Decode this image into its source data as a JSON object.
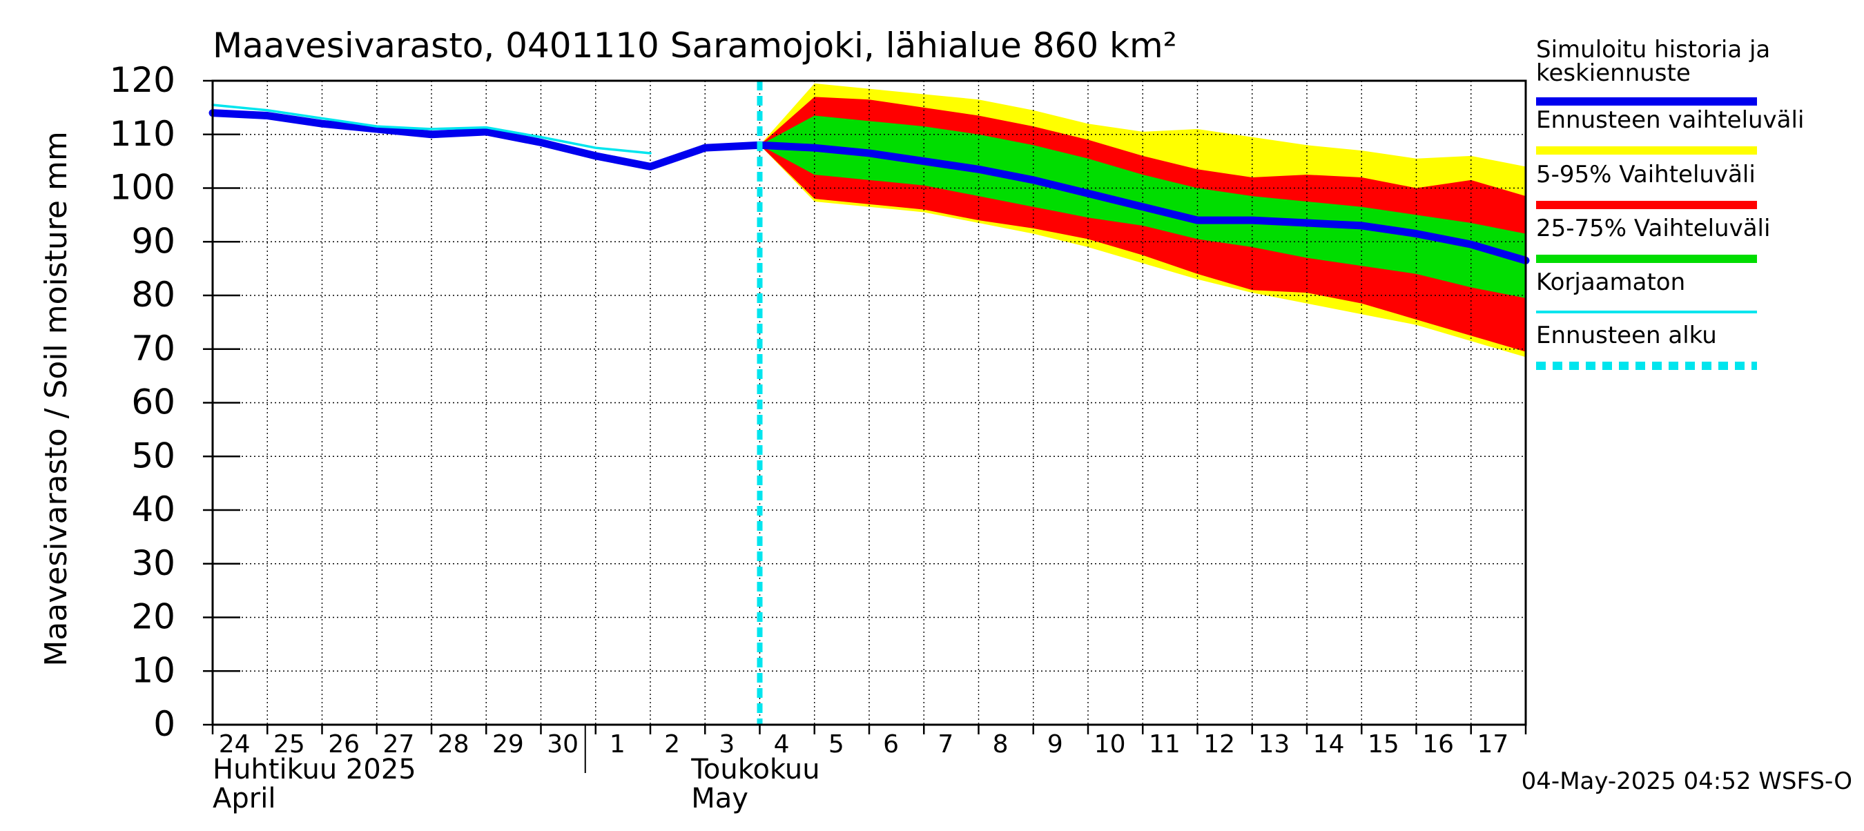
{
  "chart_data": {
    "type": "area",
    "title": "Maavesivarasto, 0401110 Saramojoki, lähialue 860 km²",
    "ylabel": "Maavesivarasto / Soil moisture   mm",
    "ylim": [
      0,
      120
    ],
    "yticks": [
      0,
      10,
      20,
      30,
      40,
      50,
      60,
      70,
      80,
      90,
      100,
      110,
      120
    ],
    "x_start_day": 24,
    "x_end_day": 48,
    "day_labels": [
      "24",
      "25",
      "26",
      "27",
      "28",
      "29",
      "30",
      "1",
      "2",
      "3",
      "4",
      "5",
      "6",
      "7",
      "8",
      "9",
      "10",
      "11",
      "12",
      "13",
      "14",
      "15",
      "16",
      "17"
    ],
    "month_labels": [
      {
        "fi": "Huhtikuu  2025",
        "en": "April"
      },
      {
        "fi": "Toukokuu",
        "en": "May"
      }
    ],
    "forecast_start_day": 34.0,
    "x": [
      24,
      25,
      26,
      27,
      28,
      29,
      30,
      31,
      32,
      33,
      34,
      35,
      36,
      37,
      38,
      39,
      40,
      41,
      42,
      43,
      44,
      45,
      46,
      47,
      48
    ],
    "series": [
      {
        "name": "Simuloitu historia ja keskiennuste",
        "color": "#0000ee",
        "values": [
          114,
          113.5,
          112,
          111,
          110,
          110.5,
          108.5,
          106,
          104,
          107.5,
          108,
          107.5,
          106.5,
          105,
          103.5,
          101.5,
          99,
          96.5,
          94,
          94,
          93.5,
          93,
          91.5,
          89.5,
          86.5
        ]
      },
      {
        "name": "Korjaamaton",
        "color": "#00e5ee",
        "x": [
          24,
          25,
          26,
          27,
          28,
          29,
          30,
          31,
          32
        ],
        "values": [
          115.5,
          114.5,
          113,
          111.5,
          111,
          111.3,
          109.5,
          107.5,
          106.5
        ]
      }
    ],
    "bands": [
      {
        "name": "Ennusteen vaihteluväli",
        "color": "#ffff00",
        "x": [
          34,
          35,
          36,
          37,
          38,
          39,
          40,
          41,
          42,
          43,
          44,
          45,
          46,
          47,
          48
        ],
        "upper": [
          108,
          119.5,
          118.5,
          117.5,
          116.5,
          114.5,
          112,
          110.5,
          111,
          109.5,
          108,
          107,
          105.5,
          106,
          104
        ],
        "lower": [
          108,
          97.5,
          96.5,
          95.5,
          93.5,
          91.5,
          89,
          86,
          83,
          80.5,
          78.5,
          76.5,
          74.5,
          71.5,
          68.5
        ]
      },
      {
        "name": "5-95% Vaihteluväli",
        "color": "#ff0000",
        "x": [
          34,
          35,
          36,
          37,
          38,
          39,
          40,
          41,
          42,
          43,
          44,
          45,
          46,
          47,
          48
        ],
        "upper": [
          108,
          117,
          116.5,
          115,
          113.5,
          111.5,
          109,
          106,
          103.5,
          102,
          102.5,
          102,
          100,
          101.5,
          98.5
        ],
        "lower": [
          108,
          98,
          97,
          96,
          94,
          92.5,
          90.5,
          87.5,
          84,
          81,
          80.5,
          78.5,
          75.5,
          72.5,
          69.5
        ]
      },
      {
        "name": "25-75% Vaihteluväli",
        "color": "#00dd00",
        "x": [
          34,
          35,
          36,
          37,
          38,
          39,
          40,
          41,
          42,
          43,
          44,
          45,
          46,
          47,
          48
        ],
        "upper": [
          108,
          113.5,
          112.5,
          111.5,
          110,
          108,
          105.5,
          102.5,
          100,
          98.5,
          97.5,
          96.5,
          95,
          93.5,
          91.5
        ],
        "lower": [
          108,
          102.5,
          101.5,
          100.5,
          98.5,
          96.5,
          94.5,
          93,
          90.5,
          89,
          87,
          85.5,
          84,
          81.5,
          79.5
        ]
      }
    ],
    "legend": [
      {
        "label": "Simuloitu historia ja keskiennuste",
        "color": "#0000ee",
        "style": "thick"
      },
      {
        "label": "Ennusteen vaihteluväli",
        "color": "#ffff00",
        "style": "thick"
      },
      {
        "label": "5-95% Vaihteluväli",
        "color": "#ff0000",
        "style": "thick"
      },
      {
        "label": "25-75% Vaihteluväli",
        "color": "#00dd00",
        "style": "thick"
      },
      {
        "label": "Korjaamaton",
        "color": "#00e5ee",
        "style": "thin"
      },
      {
        "label": "Ennusteen alku",
        "color": "#00e5ee",
        "style": "dashed"
      }
    ],
    "legend_position": "right",
    "grid": true,
    "footer": "04-May-2025 04:52 WSFS-O"
  }
}
